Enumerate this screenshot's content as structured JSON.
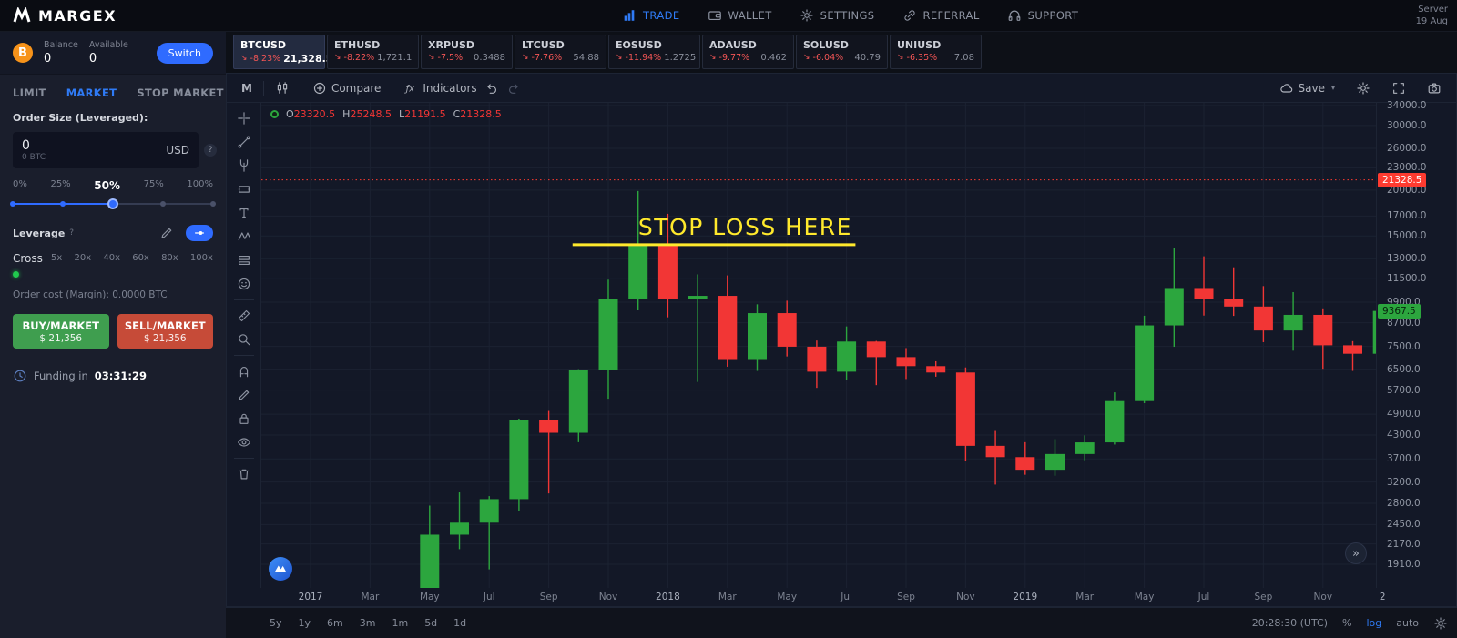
{
  "navbar": {
    "brand": "MARGEX",
    "items": [
      {
        "label": "TRADE",
        "icon": "bar-chart-icon",
        "active": true
      },
      {
        "label": "WALLET",
        "icon": "wallet-icon",
        "active": false
      },
      {
        "label": "SETTINGS",
        "icon": "gear-icon",
        "active": false
      },
      {
        "label": "REFERRAL",
        "icon": "link-icon",
        "active": false
      },
      {
        "label": "SUPPORT",
        "icon": "headset-icon",
        "active": false
      }
    ],
    "server_label": "Server",
    "server_date": "19 Aug"
  },
  "sidebar": {
    "balance_label": "Balance",
    "balance_value": "0",
    "available_label": "Available",
    "available_value": "0",
    "switch_label": "Switch",
    "tabs": [
      {
        "label": "LIMIT",
        "active": false
      },
      {
        "label": "MARKET",
        "active": true
      },
      {
        "label": "STOP MARKET",
        "active": false
      }
    ],
    "order_size_label": "Order Size (Leveraged):",
    "order_size_value": "0",
    "order_size_sub": "0 BTC",
    "order_size_currency": "USD",
    "help_badge": "?",
    "percent_labels": [
      "0%",
      "25%",
      "50%",
      "75%",
      "100%"
    ],
    "percent_selected_index": 2,
    "leverage_label": "Leverage",
    "leverage_help": "?",
    "margin_mode": "Cross",
    "leverage_options": [
      "5x",
      "20x",
      "40x",
      "60x",
      "80x",
      "100x"
    ],
    "order_cost": "Order cost (Margin): 0.0000 BTC",
    "buy_button": {
      "line1": "BUY/MARKET",
      "line2": "$ 21,356"
    },
    "sell_button": {
      "line1": "SELL/MARKET",
      "line2": "$ 21,356"
    },
    "funding_label": "Funding in",
    "funding_value": "03:31:29"
  },
  "tickers": [
    {
      "symbol": "BTCUSD",
      "change": "-8.23%",
      "price": "21,328.5",
      "active": true
    },
    {
      "symbol": "ETHUSD",
      "change": "-8.22%",
      "price": "1,721.1",
      "active": false
    },
    {
      "symbol": "XRPUSD",
      "change": "-7.5%",
      "price": "0.3488",
      "active": false
    },
    {
      "symbol": "LTCUSD",
      "change": "-7.76%",
      "price": "54.88",
      "active": false
    },
    {
      "symbol": "EOSUSD",
      "change": "-11.94%",
      "price": "1.2725",
      "active": false
    },
    {
      "symbol": "ADAUSD",
      "change": "-9.77%",
      "price": "0.462",
      "active": false
    },
    {
      "symbol": "SOLUSD",
      "change": "-6.04%",
      "price": "40.79",
      "active": false
    },
    {
      "symbol": "UNIUSD",
      "change": "-6.35%",
      "price": "7.08",
      "active": false
    }
  ],
  "chart_toolbar": {
    "interval": "M",
    "compare_label": "Compare",
    "indicators_label": "Indicators",
    "save_label": "Save"
  },
  "draw_tools": [
    "crosshair",
    "trendline",
    "pitchfork",
    "rectangle",
    "text",
    "pattern",
    "position",
    "emoji",
    "|",
    "ruler",
    "zoom",
    "|",
    "magnet",
    "draw",
    "lock",
    "eye",
    "|",
    "trash"
  ],
  "chart_data": {
    "type": "candlestick",
    "symbol": "BTCUSD",
    "interval": "1M",
    "scale": "log",
    "ylim": [
      1910,
      34000
    ],
    "current_ohlc": {
      "O": "23320.5",
      "H": "25248.5",
      "L": "21191.5",
      "C": "21328.5"
    },
    "current_price": 21328.5,
    "last_close": 9367.5,
    "price_axis_labels": [
      34000,
      30000,
      26000,
      23000,
      20000,
      17000,
      15000,
      13000,
      11500,
      9900,
      8700,
      7500,
      6500,
      5700,
      4900,
      4300,
      3700,
      3200,
      2800,
      2450,
      2170,
      1910
    ],
    "time_axis_labels": [
      [
        "2017",
        0
      ],
      [
        "Mar",
        2
      ],
      [
        "May",
        4
      ],
      [
        "Jul",
        6
      ],
      [
        "Sep",
        8
      ],
      [
        "Nov",
        10
      ],
      [
        "2018",
        12
      ],
      [
        "Mar",
        14
      ],
      [
        "May",
        16
      ],
      [
        "Jul",
        18
      ],
      [
        "Sep",
        20
      ],
      [
        "Nov",
        22
      ],
      [
        "2019",
        24
      ],
      [
        "Mar",
        26
      ],
      [
        "May",
        28
      ],
      [
        "Jul",
        30
      ],
      [
        "Sep",
        32
      ],
      [
        "Nov",
        34
      ],
      [
        "2",
        36
      ]
    ],
    "candles": [
      [
        4,
        1350,
        2760,
        1320,
        2300
      ],
      [
        5,
        2300,
        2999,
        2100,
        2480
      ],
      [
        6,
        2480,
        2930,
        1850,
        2875
      ],
      [
        7,
        2875,
        4765,
        2675,
        4735
      ],
      [
        8,
        4735,
        5000,
        2980,
        4360
      ],
      [
        9,
        4360,
        6500,
        4110,
        6450
      ],
      [
        10,
        6450,
        11400,
        5400,
        10100
      ],
      [
        11,
        10100,
        19891,
        9400,
        14156
      ],
      [
        12,
        14156,
        17234,
        9000,
        10100
      ],
      [
        13,
        10100,
        11786,
        6000,
        10300
      ],
      [
        14,
        10300,
        11710,
        6600,
        6926
      ],
      [
        15,
        6926,
        9767,
        6430,
        9240
      ],
      [
        16,
        9240,
        9990,
        7040,
        7485
      ],
      [
        17,
        7485,
        7780,
        5780,
        6398
      ],
      [
        18,
        6398,
        8500,
        6070,
        7730
      ],
      [
        19,
        7730,
        7760,
        5880,
        7011
      ],
      [
        20,
        7011,
        7420,
        6111,
        6625
      ],
      [
        21,
        6625,
        6830,
        6200,
        6365
      ],
      [
        22,
        6365,
        6570,
        3650,
        4017
      ],
      [
        23,
        4017,
        4410,
        3150,
        3742
      ],
      [
        24,
        3742,
        4110,
        3350,
        3457
      ],
      [
        25,
        3457,
        4190,
        3330,
        3816
      ],
      [
        26,
        3816,
        4290,
        3670,
        4105
      ],
      [
        27,
        4105,
        5620,
        4050,
        5320
      ],
      [
        28,
        5320,
        9090,
        5250,
        8555
      ],
      [
        29,
        8555,
        13880,
        7480,
        10817
      ],
      [
        30,
        10817,
        13200,
        9100,
        10080
      ],
      [
        31,
        10080,
        12320,
        9080,
        9630
      ],
      [
        32,
        9630,
        10950,
        7700,
        8285
      ],
      [
        33,
        8285,
        10540,
        7300,
        9140
      ],
      [
        34,
        9140,
        9520,
        6515,
        7550
      ],
      [
        35,
        7550,
        7750,
        6430,
        7160
      ],
      [
        36,
        7160,
        9570,
        6850,
        9367.5
      ]
    ],
    "annotation": {
      "text": "STOP LOSS HERE",
      "price": 14200,
      "from_m": 8.8,
      "to_m": 18.3,
      "text_center_m": 14.6,
      "color": "#ffe92c"
    },
    "colors": {
      "up": "#2ca63e",
      "down": "#f23635",
      "current_line": "#ff3b30",
      "last_close_tag": "#2ca63e"
    }
  },
  "bottom_bar": {
    "timeframes": [
      "5y",
      "1y",
      "6m",
      "3m",
      "1m",
      "5d",
      "1d"
    ],
    "clock": "20:28:30 (UTC)",
    "percent_label": "%",
    "log_label": "log",
    "auto_label": "auto"
  }
}
